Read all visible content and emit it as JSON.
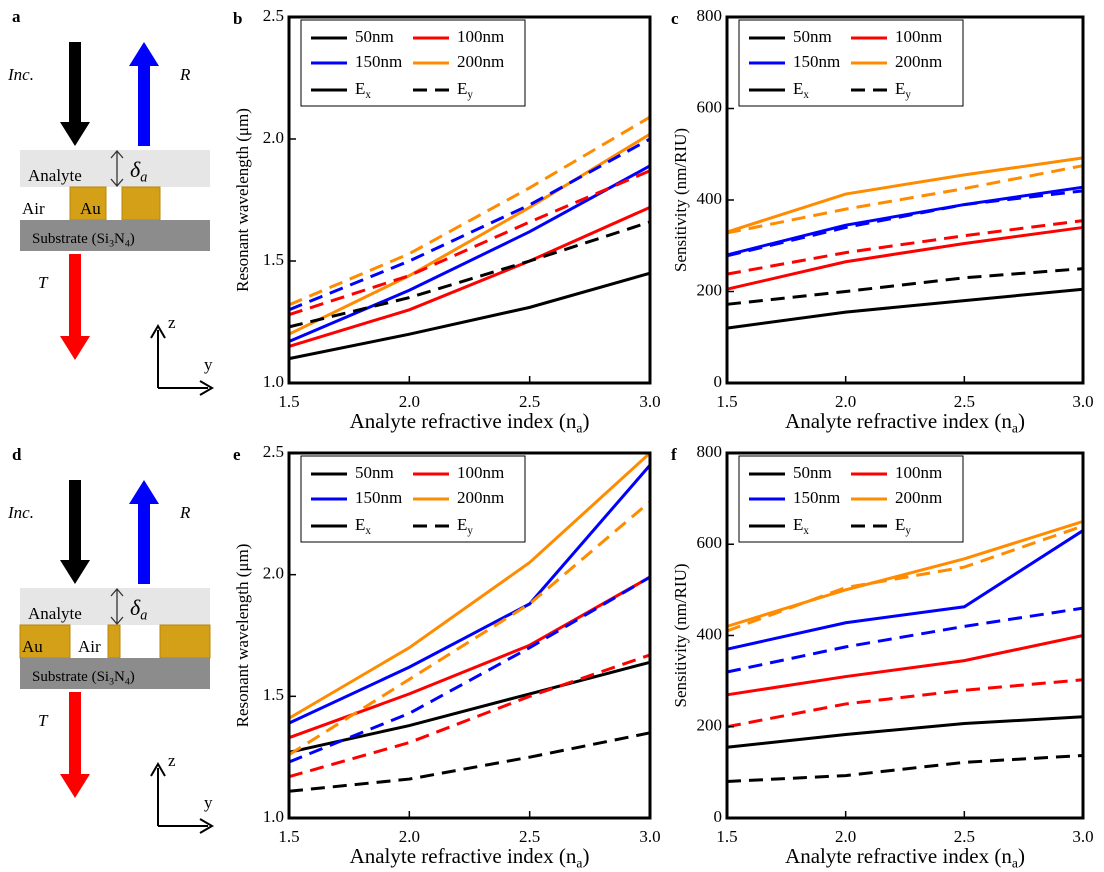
{
  "diagrams": [
    {
      "panel": "a",
      "incident": "Inc.",
      "reflected": "R",
      "transmitted": "T",
      "analyte": "Analyte",
      "delta": [
        "δ",
        "a"
      ],
      "layer_labels": [
        "Air",
        "Au"
      ],
      "substrate": [
        "Substrate (Si",
        "3",
        "N",
        "4",
        ")"
      ],
      "axis_z": "z",
      "axis_y": "y"
    },
    {
      "panel": "d",
      "incident": "Inc.",
      "reflected": "R",
      "transmitted": "T",
      "analyte": "Analyte",
      "delta": [
        "δ",
        "a"
      ],
      "layer_labels": [
        "Au",
        "Air"
      ],
      "substrate": [
        "Substrate (Si",
        "3",
        "N",
        "4",
        ")"
      ],
      "axis_z": "z",
      "axis_y": "y"
    }
  ],
  "chart_data": [
    {
      "type": "line",
      "panel": "b",
      "ylabel": "Resonant wavelength (μm)",
      "xlabel": [
        "Analyte refractive index (n",
        "a",
        ")"
      ],
      "x": [
        1.5,
        2,
        2.5,
        3
      ],
      "xlim": [
        1.5,
        3
      ],
      "xticks": [
        1.5,
        {
          "value": 2,
          "label": "2.0"
        },
        2.5,
        {
          "value": 3,
          "label": "3.0"
        }
      ],
      "ylim": [
        1,
        2.5
      ],
      "yticks": [
        {
          "value": 1,
          "label": "1.0"
        },
        1.5,
        {
          "value": 2,
          "label": "2.0"
        },
        2.5
      ],
      "line_styles": [
        {
          "dash": "solid",
          "label": [
            "E",
            "x"
          ]
        },
        {
          "dash": "dashed",
          "label": [
            "E",
            "y"
          ]
        }
      ],
      "series": [
        {
          "name": "50nm",
          "color": "#000000",
          "dash": "solid",
          "values": [
            1.1,
            1.2,
            1.31,
            1.45
          ]
        },
        {
          "name": "100nm",
          "color": "#ff0000",
          "dash": "solid",
          "values": [
            1.15,
            1.3,
            1.5,
            1.72
          ]
        },
        {
          "name": "150nm",
          "color": "#0000ff",
          "dash": "solid",
          "values": [
            1.17,
            1.38,
            1.62,
            1.89
          ]
        },
        {
          "name": "200nm",
          "color": "#ff8c00",
          "dash": "solid",
          "values": [
            1.2,
            1.44,
            1.72,
            2.02
          ]
        },
        {
          "name": "50nm",
          "color": "#000000",
          "dash": "dashed",
          "values": [
            1.23,
            1.35,
            1.5,
            1.66
          ]
        },
        {
          "name": "100nm",
          "color": "#ff0000",
          "dash": "dashed",
          "values": [
            1.28,
            1.44,
            1.66,
            1.87
          ]
        },
        {
          "name": "150nm",
          "color": "#0000ff",
          "dash": "dashed",
          "values": [
            1.3,
            1.5,
            1.73,
            2.0
          ]
        },
        {
          "name": "200nm",
          "color": "#ff8c00",
          "dash": "dashed",
          "values": [
            1.32,
            1.53,
            1.8,
            2.09
          ]
        }
      ]
    },
    {
      "type": "line",
      "panel": "c",
      "ylabel": "Sensitivity (nm/RIU)",
      "xlabel": [
        "Analyte refractive index (n",
        "a",
        ")"
      ],
      "x": [
        1.5,
        2,
        2.5,
        3
      ],
      "xlim": [
        1.5,
        3
      ],
      "xticks": [
        1.5,
        {
          "value": 2,
          "label": "2.0"
        },
        2.5,
        {
          "value": 3,
          "label": "3.0"
        }
      ],
      "ylim": [
        0,
        800
      ],
      "yticks": [
        0,
        200,
        400,
        600,
        800
      ],
      "line_styles": [
        {
          "dash": "solid",
          "label": [
            "E",
            "x"
          ]
        },
        {
          "dash": "dashed",
          "label": [
            "E",
            "y"
          ]
        }
      ],
      "series": [
        {
          "name": "50nm",
          "color": "#000000",
          "dash": "solid",
          "values": [
            120,
            155,
            180,
            205
          ]
        },
        {
          "name": "100nm",
          "color": "#ff0000",
          "dash": "solid",
          "values": [
            205,
            265,
            305,
            340
          ]
        },
        {
          "name": "150nm",
          "color": "#0000ff",
          "dash": "solid",
          "values": [
            280,
            345,
            390,
            428
          ]
        },
        {
          "name": "200nm",
          "color": "#ff8c00",
          "dash": "solid",
          "values": [
            330,
            413,
            455,
            492
          ]
        },
        {
          "name": "50nm",
          "color": "#000000",
          "dash": "dashed",
          "values": [
            172,
            200,
            230,
            250
          ]
        },
        {
          "name": "100nm",
          "color": "#ff0000",
          "dash": "dashed",
          "values": [
            238,
            285,
            322,
            355
          ]
        },
        {
          "name": "150nm",
          "color": "#0000ff",
          "dash": "dashed",
          "values": [
            278,
            340,
            390,
            420
          ]
        },
        {
          "name": "200nm",
          "color": "#ff8c00",
          "dash": "dashed",
          "values": [
            328,
            380,
            425,
            475
          ]
        }
      ]
    },
    {
      "type": "line",
      "panel": "e",
      "ylabel": "Resonant wavelength (μm)",
      "xlabel": [
        "Analyte refractive index (n",
        "a",
        ")"
      ],
      "x": [
        1.5,
        2,
        2.5,
        3
      ],
      "xlim": [
        1.5,
        3
      ],
      "xticks": [
        1.5,
        {
          "value": 2,
          "label": "2.0"
        },
        2.5,
        {
          "value": 3,
          "label": "3.0"
        }
      ],
      "ylim": [
        1,
        2.5
      ],
      "yticks": [
        {
          "value": 1,
          "label": "1.0"
        },
        1.5,
        {
          "value": 2,
          "label": "2.0"
        },
        2.5
      ],
      "line_styles": [
        {
          "dash": "solid",
          "label": [
            "E",
            "x"
          ]
        },
        {
          "dash": "dashed",
          "label": [
            "E",
            "y"
          ]
        }
      ],
      "series": [
        {
          "name": "50nm",
          "color": "#000000",
          "dash": "solid",
          "values": [
            1.27,
            1.38,
            1.51,
            1.64
          ]
        },
        {
          "name": "100nm",
          "color": "#ff0000",
          "dash": "solid",
          "values": [
            1.33,
            1.51,
            1.71,
            1.99
          ]
        },
        {
          "name": "150nm",
          "color": "#0000ff",
          "dash": "solid",
          "values": [
            1.39,
            1.62,
            1.88,
            2.45
          ]
        },
        {
          "name": "200nm",
          "color": "#ff8c00",
          "dash": "solid",
          "values": [
            1.41,
            1.7,
            2.05,
            2.5
          ]
        },
        {
          "name": "50nm",
          "color": "#000000",
          "dash": "dashed",
          "values": [
            1.11,
            1.16,
            1.25,
            1.35
          ]
        },
        {
          "name": "100nm",
          "color": "#ff0000",
          "dash": "dashed",
          "values": [
            1.17,
            1.31,
            1.5,
            1.67
          ]
        },
        {
          "name": "150nm",
          "color": "#0000ff",
          "dash": "dashed",
          "values": [
            1.23,
            1.43,
            1.7,
            1.99
          ]
        },
        {
          "name": "200nm",
          "color": "#ff8c00",
          "dash": "dashed",
          "values": [
            1.26,
            1.57,
            1.88,
            2.3
          ]
        }
      ]
    },
    {
      "type": "line",
      "panel": "f",
      "ylabel": "Sensitivity (nm/RIU)",
      "xlabel": [
        "Analyte refractive index (n",
        "a",
        ")"
      ],
      "x": [
        1.5,
        2,
        2.5,
        3
      ],
      "xlim": [
        1.5,
        3
      ],
      "xticks": [
        1.5,
        {
          "value": 2,
          "label": "2.0"
        },
        2.5,
        {
          "value": 3,
          "label": "3.0"
        }
      ],
      "ylim": [
        0,
        800
      ],
      "yticks": [
        0,
        200,
        400,
        600,
        800
      ],
      "line_styles": [
        {
          "dash": "solid",
          "label": [
            "E",
            "x"
          ]
        },
        {
          "dash": "dashed",
          "label": [
            "E",
            "y"
          ]
        }
      ],
      "series": [
        {
          "name": "50nm",
          "color": "#000000",
          "dash": "solid",
          "values": [
            155,
            183,
            207,
            222
          ]
        },
        {
          "name": "100nm",
          "color": "#ff0000",
          "dash": "solid",
          "values": [
            270,
            310,
            345,
            400
          ]
        },
        {
          "name": "150nm",
          "color": "#0000ff",
          "dash": "solid",
          "values": [
            370,
            428,
            463,
            630
          ]
        },
        {
          "name": "200nm",
          "color": "#ff8c00",
          "dash": "solid",
          "values": [
            420,
            500,
            568,
            650
          ]
        },
        {
          "name": "50nm",
          "color": "#000000",
          "dash": "dashed",
          "values": [
            80,
            93,
            122,
            137
          ]
        },
        {
          "name": "100nm",
          "color": "#ff0000",
          "dash": "dashed",
          "values": [
            200,
            250,
            280,
            303
          ]
        },
        {
          "name": "150nm",
          "color": "#0000ff",
          "dash": "dashed",
          "values": [
            320,
            375,
            420,
            460
          ]
        },
        {
          "name": "200nm",
          "color": "#ff8c00",
          "dash": "dashed",
          "values": [
            410,
            505,
            550,
            640
          ]
        }
      ]
    }
  ]
}
